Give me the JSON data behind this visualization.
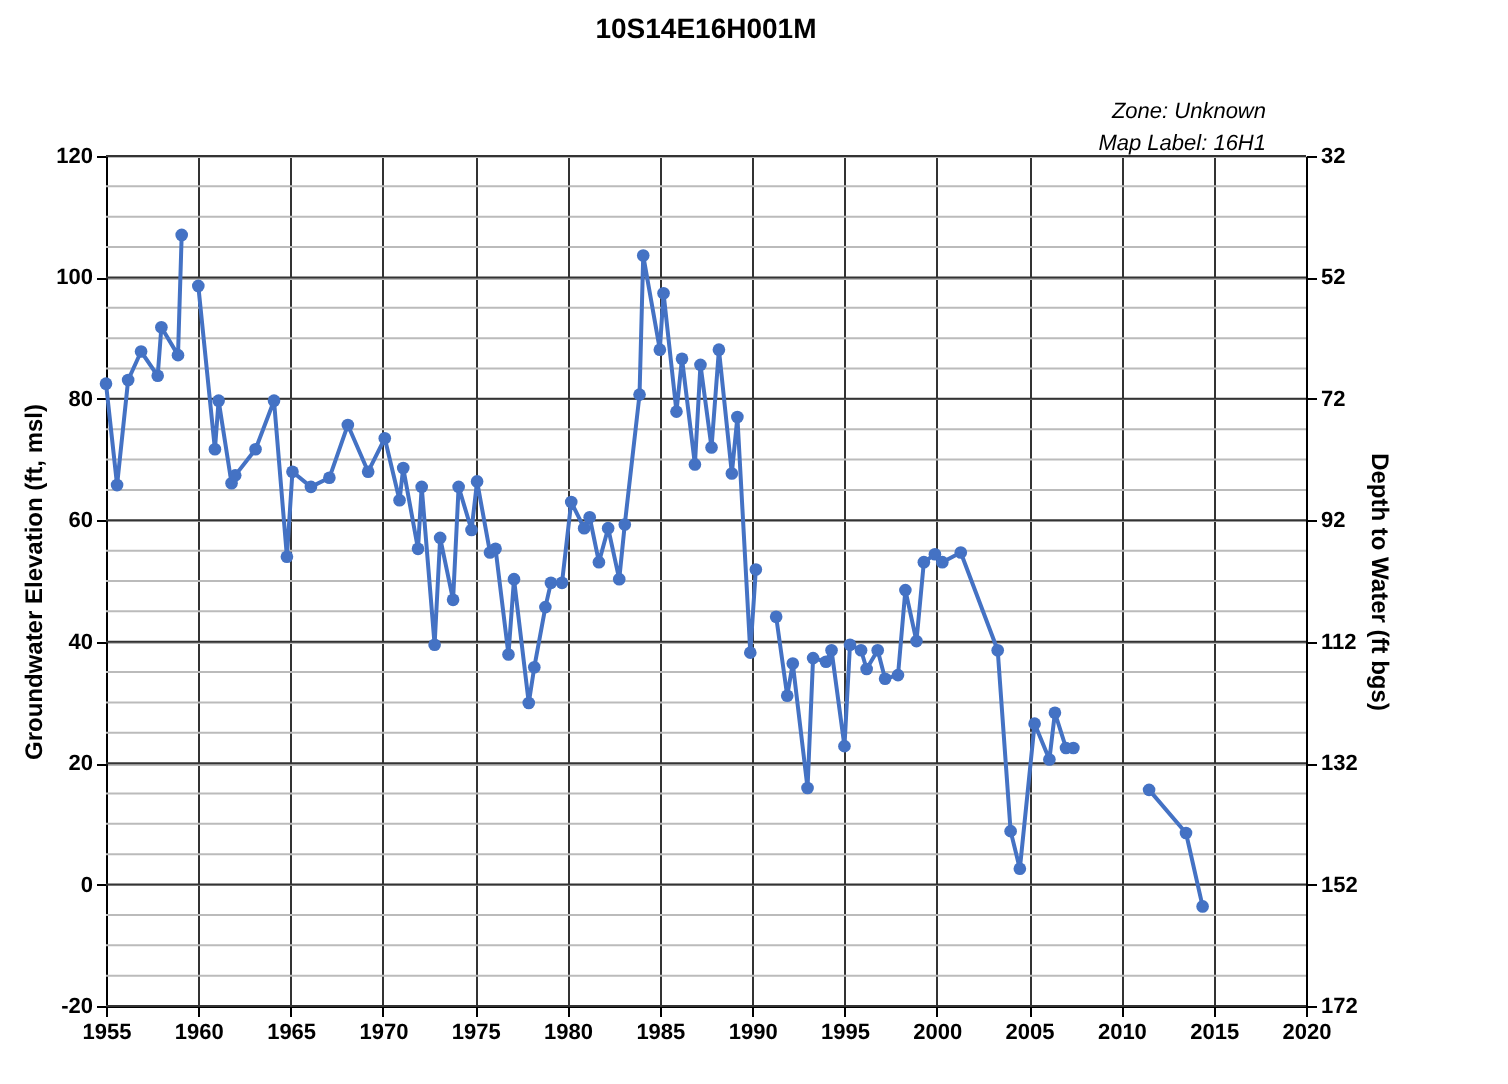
{
  "chart_data": {
    "type": "line",
    "title": "10S14E16H001M",
    "annotations": [
      "Zone: Unknown",
      "Map Label: 16H1"
    ],
    "ylabel": "Groundwater Elevation (ft, msl)",
    "y2label": "Depth to Water (ft bgs)",
    "xlim": [
      1955,
      2020
    ],
    "xticks": [
      1955,
      1960,
      1965,
      1970,
      1975,
      1980,
      1985,
      1990,
      1995,
      2000,
      2005,
      2010,
      2015,
      2020
    ],
    "ylim": [
      -20,
      120
    ],
    "yticks": [
      -20,
      {
        "value": -15,
        "label": null
      },
      {
        "value": -10,
        "label": null
      },
      {
        "value": -5,
        "label": null
      },
      0,
      {
        "value": 5,
        "label": null
      },
      {
        "value": 10,
        "label": null
      },
      {
        "value": 15,
        "label": null
      },
      20,
      {
        "value": 25,
        "label": null
      },
      {
        "value": 30,
        "label": null
      },
      {
        "value": 35,
        "label": null
      },
      40,
      {
        "value": 45,
        "label": null
      },
      {
        "value": 50,
        "label": null
      },
      {
        "value": 55,
        "label": null
      },
      60,
      {
        "value": 65,
        "label": null
      },
      {
        "value": 70,
        "label": null
      },
      {
        "value": 75,
        "label": null
      },
      80,
      {
        "value": 85,
        "label": null
      },
      {
        "value": 90,
        "label": null
      },
      {
        "value": 95,
        "label": null
      },
      100,
      {
        "value": 105,
        "label": null
      },
      {
        "value": 110,
        "label": null
      },
      {
        "value": 115,
        "label": null
      },
      120
    ],
    "y2lim": [
      172,
      32
    ],
    "y2ticks": [
      32,
      52,
      72,
      92,
      112,
      132,
      152,
      172
    ],
    "grid": true,
    "legend": false,
    "marker": "circle",
    "line_style": "solid",
    "series": [
      {
        "color": "#4472c4",
        "x": [
          1955.0,
          1955.6,
          1956.2,
          1956.9,
          1957.8,
          1958.0,
          1958.9,
          1959.1,
          1959.5,
          1960.0,
          1960.9,
          1961.1,
          1961.8,
          1962.0,
          1963.1,
          1964.1,
          1964.8,
          1965.1,
          1966.1,
          1967.1,
          1968.1,
          1969.2,
          1970.1,
          1970.9,
          1971.1,
          1971.9,
          1972.1,
          1972.8,
          1973.1,
          1973.8,
          1974.1,
          1974.8,
          1975.1,
          1975.8,
          1976.1,
          1976.8,
          1977.1,
          1977.9,
          1978.2,
          1978.8,
          1979.1,
          1979.7,
          1980.2,
          1980.9,
          1981.2,
          1981.7,
          1982.2,
          1982.8,
          1983.1,
          1983.9,
          1984.1,
          1985.0,
          1985.2,
          1985.9,
          1986.2,
          1986.9,
          1987.2,
          1987.8,
          1988.2,
          1988.9,
          1989.2,
          1989.9,
          1990.2,
          1990.7,
          1991.3,
          1991.9,
          1992.2,
          1993.0,
          1993.3,
          1994.0,
          1994.3,
          1995.0,
          1995.3,
          1995.9,
          1996.2,
          1996.8,
          1997.2,
          1997.9,
          1998.3,
          1998.9,
          1999.3,
          1999.9,
          2000.3,
          2001.3,
          2003.3,
          2004.0,
          2004.5,
          2005.3,
          2006.1,
          2006.4,
          2007.0,
          2007.4,
          2009.5,
          2011.5,
          2013.5,
          2014.4
        ],
        "values": [
          82.5,
          65.8,
          83.1,
          87.8,
          83.8,
          91.8,
          87.2,
          107,
          null,
          98.6,
          71.7,
          79.7,
          66.1,
          67.4,
          71.7,
          79.7,
          54.0,
          68.0,
          65.5,
          67.0,
          75.7,
          68.0,
          73.5,
          63.3,
          68.6,
          55.3,
          65.5,
          39.5,
          57.1,
          46.9,
          65.5,
          58.4,
          66.4,
          54.7,
          55.3,
          37.9,
          50.3,
          29.9,
          35.8,
          45.7,
          49.7,
          49.7,
          63.0,
          58.7,
          60.5,
          53.1,
          58.7,
          50.3,
          59.3,
          80.7,
          103.6,
          88.1,
          97.4,
          77.9,
          86.6,
          69.2,
          85.6,
          72.0,
          88.1,
          67.7,
          77.0,
          38.2,
          51.9,
          null,
          44.1,
          31.1,
          36.4,
          15.9,
          37.3,
          36.7,
          38.6,
          22.8,
          39.5,
          38.6,
          35.5,
          38.6,
          33.9,
          34.5,
          48.5,
          40.1,
          53.1,
          54.4,
          53.1,
          54.7,
          38.6,
          8.8,
          2.6,
          26.5,
          20.6,
          28.3,
          22.5,
          22.5,
          null,
          15.6,
          8.5,
          -3.6
        ]
      }
    ]
  }
}
